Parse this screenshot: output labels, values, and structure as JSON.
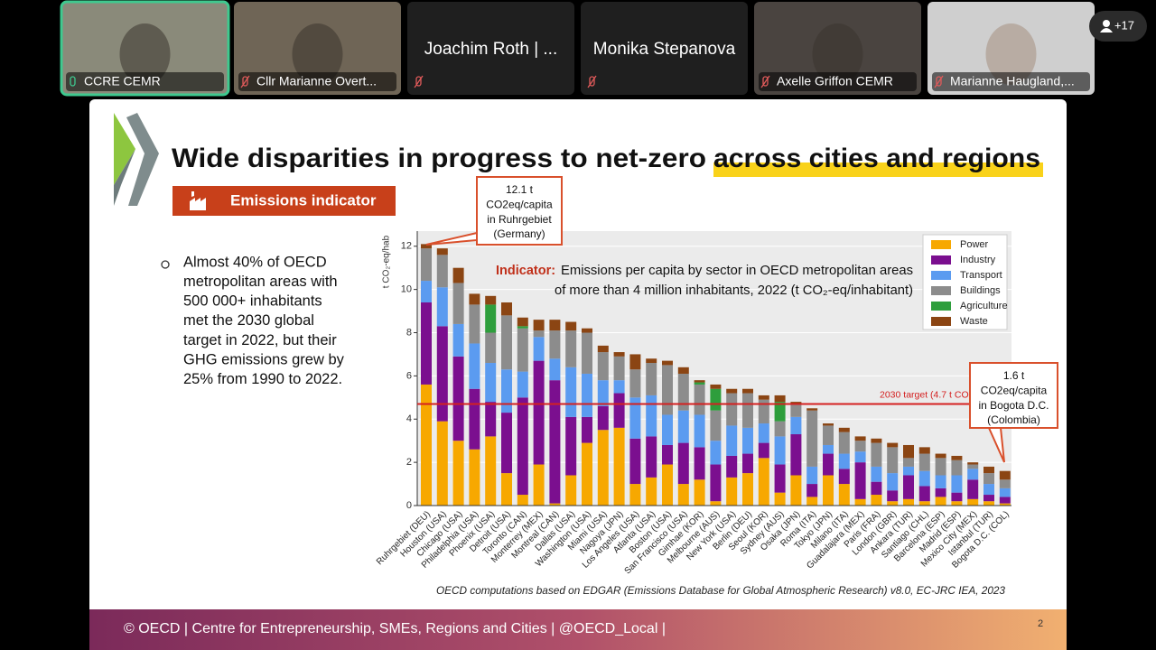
{
  "meeting": {
    "participants": [
      {
        "name": "CCRE CEMR",
        "video": true,
        "active": true
      },
      {
        "name": "Cllr Marianne Overt...",
        "video": true,
        "active": false
      },
      {
        "name": "Joachim Roth | ...",
        "video": false,
        "active": false
      },
      {
        "name": "Monika Stepanova",
        "video": false,
        "active": false
      },
      {
        "name": "Axelle Griffon CEMR",
        "video": true,
        "active": false
      },
      {
        "name": "Marianne Haugland,...",
        "video": true,
        "active": false
      }
    ],
    "overflow": "+17"
  },
  "slide": {
    "title_part1": "Wide disparities in progress to net-zero ",
    "title_part2": "across cities and regions",
    "badge": "Emissions indicator",
    "bullet_lines": [
      "Almost 40% of OECD",
      "metropolitan areas with",
      "500 000+ inhabitants",
      "met the 2030 global",
      "target in 2022, but their",
      "GHG emissions grew by",
      "25% from 1990 to 2022."
    ],
    "indicator_label": "Indicator:",
    "indicator_lines": [
      "Emissions per capita by sector in OECD metropolitan areas",
      "of more than 4 million inhabitants, 2022 (t CO₂-eq/inhabitant)"
    ],
    "callout_top": [
      "12.1 t",
      "CO2eq/capita",
      "in Ruhrgebiet",
      "(Germany)"
    ],
    "callout_bottom": [
      "1.6 t",
      "CO2eq/capita",
      "in Bogota D.C.",
      "(Colombia)"
    ],
    "source": "OECD computations based on EDGAR (Emissions Database for Global Atmospheric Research) v8.0, EC-JRC IEA, 2023",
    "footer": "© OECD | Centre for Entrepreneurship, SMEs, Regions and Cities | @OECD_Local |",
    "page_number": 2
  },
  "chart_data": {
    "type": "bar",
    "stacked": true,
    "y_label": "t CO₂-eq/hab",
    "categories": [
      "Ruhrgebiet (DEU)",
      "Houston (USA)",
      "Chicago (USA)",
      "Philadelphia (USA)",
      "Phoenix (USA)",
      "Detroit (USA)",
      "Toronto (CAN)",
      "Monterrey (MEX)",
      "Montreal (CAN)",
      "Dallas (USA)",
      "Washington (USA)",
      "Miami (USA)",
      "Nagoya (JPN)",
      "Los Angeles (USA)",
      "Atlanta (USA)",
      "Boston (USA)",
      "San Francisco (USA)",
      "Gimhae (KOR)",
      "Melbourne (AUS)",
      "New York (USA)",
      "Berlin (DEU)",
      "Seoul (KOR)",
      "Sydney (AUS)",
      "Osaka (JPN)",
      "Roma (ITA)",
      "Tokyo (JPN)",
      "Milano (ITA)",
      "Guadalajara (MEX)",
      "Paris (FRA)",
      "London (GBR)",
      "Ankara (TUR)",
      "Santiago (CHL)",
      "Barcelona (ESP)",
      "Madrid (ESP)",
      "Mexico City (MEX)",
      "Istanbul (TUR)",
      "Bogota D.C. (COL)"
    ],
    "series": [
      {
        "name": "Power",
        "color": "#f7a800",
        "values": [
          5.6,
          3.9,
          3.0,
          2.6,
          3.2,
          1.5,
          0.5,
          1.9,
          0.1,
          1.4,
          2.9,
          3.5,
          3.6,
          1.0,
          1.3,
          1.9,
          1.0,
          1.2,
          0.2,
          1.3,
          1.5,
          2.2,
          0.6,
          1.4,
          0.4,
          1.4,
          1.0,
          0.3,
          0.5,
          0.2,
          0.3,
          0.2,
          0.4,
          0.2,
          0.3,
          0.2,
          0.1
        ]
      },
      {
        "name": "Industry",
        "color": "#7b0f8f",
        "values": [
          3.8,
          4.4,
          3.9,
          2.8,
          1.6,
          2.8,
          4.5,
          4.8,
          5.7,
          2.7,
          1.2,
          1.1,
          1.6,
          2.1,
          1.9,
          0.9,
          1.9,
          1.5,
          1.7,
          1.0,
          0.9,
          0.7,
          1.3,
          1.9,
          0.6,
          1.0,
          0.7,
          1.7,
          0.6,
          0.5,
          1.1,
          0.7,
          0.4,
          0.4,
          0.9,
          0.3,
          0.3
        ]
      },
      {
        "name": "Transport",
        "color": "#5b9bf0",
        "values": [
          1.0,
          1.8,
          1.5,
          2.1,
          1.8,
          2.0,
          1.2,
          1.1,
          1.0,
          2.3,
          2.0,
          1.2,
          0.6,
          1.9,
          1.9,
          1.4,
          1.5,
          1.5,
          1.1,
          1.4,
          1.2,
          0.9,
          1.3,
          0.8,
          0.8,
          0.4,
          0.7,
          0.5,
          0.7,
          0.8,
          0.4,
          0.7,
          0.6,
          0.8,
          0.5,
          0.5,
          0.4
        ]
      },
      {
        "name": "Buildings",
        "color": "#8c8c8c",
        "values": [
          1.5,
          1.5,
          1.9,
          1.8,
          1.4,
          2.5,
          2.0,
          0.3,
          1.3,
          1.7,
          1.9,
          1.3,
          1.1,
          1.3,
          1.5,
          2.3,
          1.7,
          1.4,
          1.4,
          1.5,
          1.6,
          1.1,
          0.7,
          0.6,
          2.6,
          0.9,
          1.0,
          0.5,
          1.1,
          1.2,
          0.4,
          0.8,
          0.8,
          0.7,
          0.2,
          0.5,
          0.4
        ]
      },
      {
        "name": "Agriculture",
        "color": "#2e9e3c",
        "values": [
          0,
          0,
          0,
          0,
          1.3,
          0,
          0.1,
          0,
          0,
          0,
          0,
          0,
          0,
          0,
          0,
          0,
          0,
          0.1,
          1.0,
          0,
          0,
          0,
          0.9,
          0,
          0,
          0,
          0,
          0,
          0,
          0,
          0,
          0,
          0,
          0,
          0,
          0,
          0
        ]
      },
      {
        "name": "Waste",
        "color": "#8b4513",
        "values": [
          0.2,
          0.3,
          0.7,
          0.5,
          0.4,
          0.6,
          0.4,
          0.5,
          0.5,
          0.4,
          0.2,
          0.3,
          0.2,
          0.7,
          0.2,
          0.2,
          0.3,
          0.1,
          0.2,
          0.2,
          0.2,
          0.2,
          0.3,
          0.1,
          0.1,
          0.1,
          0.2,
          0.2,
          0.2,
          0.2,
          0.6,
          0.3,
          0.2,
          0.2,
          0.1,
          0.3,
          0.4
        ]
      }
    ],
    "ylim": [
      0,
      12.7
    ],
    "yticks": [
      0,
      2,
      4,
      6,
      8,
      10,
      12
    ],
    "grid": true,
    "legend": "top-right",
    "reference_line": {
      "value": 4.7,
      "label": "2030 target (4.7 t CO2e",
      "color": "#d42020"
    }
  }
}
